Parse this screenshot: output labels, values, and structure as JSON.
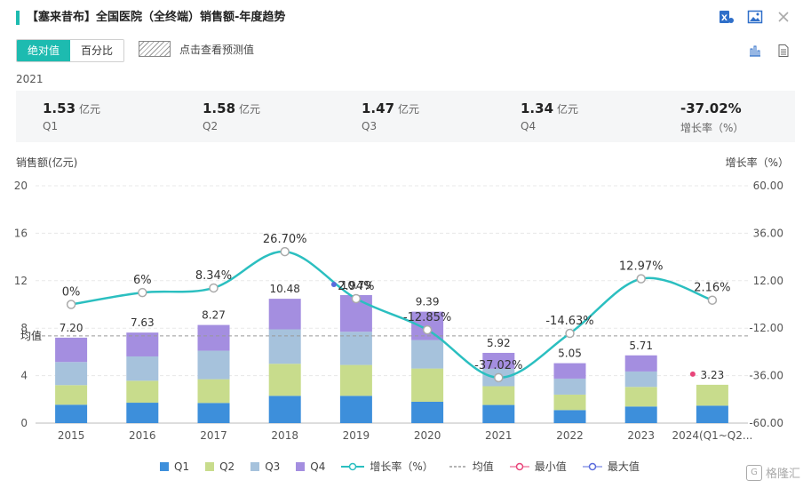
{
  "title": "【塞来昔布】全国医院（全终端）销售额-年度趋势",
  "toggle": {
    "absolute": "绝对值",
    "percent": "百分比"
  },
  "forecast_label": "点击查看预测值",
  "year": "2021",
  "summary": [
    {
      "value": "1.53",
      "unit": "亿元",
      "label": "Q1"
    },
    {
      "value": "1.58",
      "unit": "亿元",
      "label": "Q2"
    },
    {
      "value": "1.47",
      "unit": "亿元",
      "label": "Q3"
    },
    {
      "value": "1.34",
      "unit": "亿元",
      "label": "Q4"
    },
    {
      "value": "-37.02%",
      "unit": "",
      "label": "增长率（%）"
    }
  ],
  "watermark": "格隆汇",
  "chart_data": {
    "type": "bar",
    "stacked": true,
    "categories": [
      "2015",
      "2016",
      "2017",
      "2018",
      "2019",
      "2020",
      "2021",
      "2022",
      "2023",
      "2024(Q1~Q2..."
    ],
    "series": [
      {
        "name": "Q1",
        "color": "#3d8fdb",
        "values": [
          1.55,
          1.72,
          1.7,
          2.3,
          2.3,
          1.8,
          1.53,
          1.1,
          1.4,
          1.47
        ]
      },
      {
        "name": "Q2",
        "color": "#c8dc8c",
        "values": [
          1.65,
          1.85,
          2.0,
          2.7,
          2.6,
          2.8,
          1.58,
          1.3,
          1.65,
          1.76
        ]
      },
      {
        "name": "Q3",
        "color": "#a6c2dc",
        "values": [
          1.95,
          2.05,
          2.4,
          2.9,
          2.8,
          2.4,
          1.47,
          1.35,
          1.3,
          0
        ]
      },
      {
        "name": "Q4",
        "color": "#a48ee0",
        "values": [
          2.05,
          2.01,
          2.17,
          2.58,
          3.09,
          2.39,
          1.34,
          1.3,
          1.36,
          0
        ]
      }
    ],
    "totals": [
      7.2,
      7.63,
      8.27,
      10.48,
      10.79,
      9.39,
      5.92,
      5.05,
      5.71,
      3.23
    ],
    "total_labels": [
      "7.20",
      "7.63",
      "8.27",
      "10.48",
      "10.79",
      "9.39",
      "5.92",
      "5.05",
      "5.71",
      "3.23"
    ],
    "growth": {
      "name": "增长率（%）",
      "color": "#2bbfc0",
      "values": [
        0,
        6,
        8.34,
        26.7,
        2.94,
        -12.85,
        -37.02,
        -14.63,
        12.97,
        2.16
      ],
      "labels": [
        "0%",
        "6%",
        "8.34%",
        "26.70%",
        "2.94%",
        "-12.85%",
        "-37.02%",
        "-14.63%",
        "12.97%",
        "2.16%"
      ]
    },
    "average": {
      "name": "均值",
      "value": 7.35,
      "label": "均值"
    },
    "min_marker": {
      "name": "最小值",
      "color": "#e8457a"
    },
    "max_marker": {
      "name": "最大值",
      "color": "#5a6bdc"
    },
    "ylabel_left": "销售额(亿元)",
    "ylabel_right": "增长率（%）",
    "ylim_left": [
      0,
      20
    ],
    "yticks_left": [
      "0",
      "4",
      "8",
      "12",
      "16",
      "20"
    ],
    "ylim_right": [
      -60,
      60
    ],
    "yticks_right": [
      "-60.00",
      "-36.00",
      "-12.00",
      "12.00",
      "36.00",
      "60.00"
    ],
    "legend": [
      "Q1",
      "Q2",
      "Q3",
      "Q4",
      "增长率（%）",
      "均值",
      "最小值",
      "最大值"
    ],
    "legend_position": "bottom",
    "grid": true
  }
}
